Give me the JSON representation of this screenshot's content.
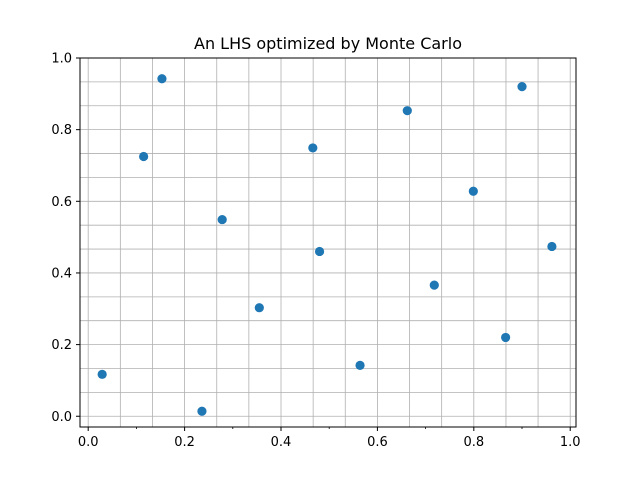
{
  "chart_data": {
    "type": "scatter",
    "title": "An LHS optimized by Monte Carlo",
    "xlabel": "",
    "ylabel": "",
    "xlim": [
      -0.017,
      1.012
    ],
    "ylim": [
      -0.03,
      1.0
    ],
    "xticks": [
      0.0,
      0.2,
      0.4,
      0.6,
      0.8,
      1.0
    ],
    "xtick_labels": [
      "0.0",
      "0.2",
      "0.4",
      "0.6",
      "0.8",
      "1.0"
    ],
    "yticks": [
      0.0,
      0.2,
      0.4,
      0.6,
      0.8,
      1.0
    ],
    "ytick_labels": [
      "0.0",
      "0.2",
      "0.4",
      "0.6",
      "0.8",
      "1.0"
    ],
    "minor_xticks": [
      0.1,
      0.3,
      0.5,
      0.7,
      0.9
    ],
    "grid_x": [
      0.0,
      0.0667,
      0.1333,
      0.2,
      0.2667,
      0.3333,
      0.4,
      0.4667,
      0.5333,
      0.6,
      0.6667,
      0.7333,
      0.8,
      0.8667,
      0.9333,
      1.0
    ],
    "grid_y": [
      0.0,
      0.0667,
      0.1333,
      0.2,
      0.2667,
      0.3333,
      0.4,
      0.4667,
      0.5333,
      0.6,
      0.6667,
      0.7333,
      0.8,
      0.8667,
      0.9333,
      1.0
    ],
    "grid": true,
    "marker_color": "#1f77b4",
    "points": [
      {
        "x": 0.029,
        "y": 0.117
      },
      {
        "x": 0.115,
        "y": 0.725
      },
      {
        "x": 0.153,
        "y": 0.942
      },
      {
        "x": 0.236,
        "y": 0.014
      },
      {
        "x": 0.278,
        "y": 0.549
      },
      {
        "x": 0.355,
        "y": 0.303
      },
      {
        "x": 0.466,
        "y": 0.749
      },
      {
        "x": 0.48,
        "y": 0.46
      },
      {
        "x": 0.564,
        "y": 0.142
      },
      {
        "x": 0.662,
        "y": 0.853
      },
      {
        "x": 0.718,
        "y": 0.366
      },
      {
        "x": 0.799,
        "y": 0.628
      },
      {
        "x": 0.866,
        "y": 0.22
      },
      {
        "x": 0.9,
        "y": 0.92
      },
      {
        "x": 0.962,
        "y": 0.474
      }
    ]
  }
}
